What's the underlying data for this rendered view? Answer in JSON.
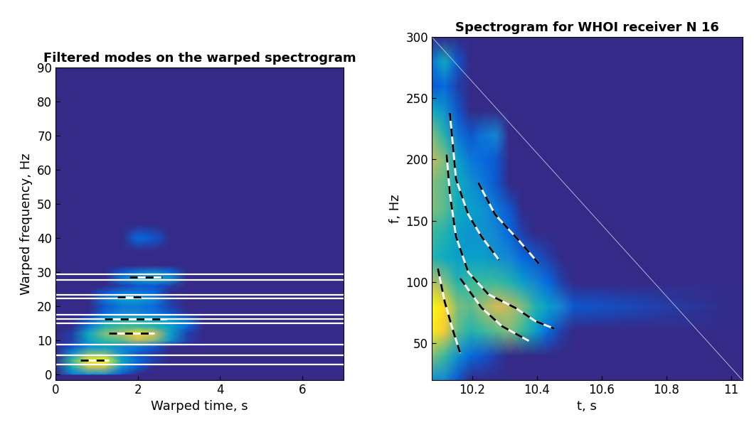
{
  "chart_data": [
    {
      "type": "heatmap",
      "title": "Filtered modes on the warped spectrogram",
      "xlabel": "Warped time, s",
      "ylabel": "Warped frequency, Hz",
      "xlim": [
        0,
        7
      ],
      "ylim": [
        -1.7,
        90
      ],
      "xticks": [
        0,
        2,
        4,
        6
      ],
      "yticks": [
        0,
        10,
        20,
        30,
        40,
        50,
        60,
        70,
        80,
        90
      ],
      "clim": [
        0,
        1
      ],
      "x": [
        0,
        0.4,
        0.8,
        1.2,
        1.6,
        2.0,
        2.4,
        2.8,
        3.2,
        3.6,
        6.9
      ],
      "y": [
        0,
        2,
        4,
        6,
        8,
        10,
        12,
        14,
        16,
        18,
        20,
        22,
        24,
        26,
        28,
        30,
        32,
        36,
        40,
        44,
        90
      ],
      "cells": [
        [
          0,
          0.2,
          0.3,
          0.3,
          0.1,
          0,
          0,
          0,
          0,
          0,
          0
        ],
        [
          0,
          0.4,
          0.7,
          0.7,
          0.3,
          0.1,
          0,
          0,
          0,
          0,
          0
        ],
        [
          0,
          0.5,
          0.95,
          1.0,
          0.4,
          0.15,
          0.05,
          0,
          0,
          0,
          0
        ],
        [
          0,
          0.3,
          0.6,
          0.6,
          0.3,
          0.1,
          0.05,
          0,
          0,
          0,
          0
        ],
        [
          0,
          0.1,
          0.3,
          0.35,
          0.25,
          0.2,
          0.1,
          0,
          0,
          0,
          0
        ],
        [
          0,
          0.05,
          0.35,
          0.5,
          0.55,
          0.7,
          0.6,
          0.3,
          0.05,
          0,
          0
        ],
        [
          0,
          0.05,
          0.4,
          0.6,
          0.7,
          0.9,
          0.75,
          0.35,
          0.05,
          0,
          0
        ],
        [
          0,
          0,
          0.2,
          0.45,
          0.5,
          0.5,
          0.45,
          0.35,
          0.15,
          0,
          0
        ],
        [
          0,
          0,
          0.1,
          0.35,
          0.45,
          0.45,
          0.4,
          0.35,
          0.2,
          0,
          0
        ],
        [
          0,
          0,
          0,
          0.15,
          0.25,
          0.25,
          0.2,
          0.1,
          0,
          0,
          0
        ],
        [
          0,
          0,
          0,
          0.1,
          0.2,
          0.2,
          0.15,
          0.05,
          0,
          0,
          0
        ],
        [
          0,
          0,
          0,
          0.2,
          0.35,
          0.35,
          0.25,
          0.05,
          0,
          0,
          0
        ],
        [
          0,
          0,
          0,
          0.1,
          0.2,
          0.2,
          0.15,
          0,
          0,
          0,
          0
        ],
        [
          0,
          0,
          0,
          0,
          0.05,
          0.1,
          0.1,
          0.05,
          0,
          0,
          0
        ],
        [
          0,
          0,
          0,
          0,
          0.2,
          0.35,
          0.4,
          0.3,
          0,
          0,
          0
        ],
        [
          0,
          0,
          0,
          0,
          0.1,
          0.2,
          0.25,
          0.15,
          0,
          0,
          0
        ],
        [
          0,
          0,
          0,
          0,
          0,
          0,
          0,
          0,
          0,
          0,
          0
        ],
        [
          0,
          0,
          0,
          0,
          0,
          0,
          0,
          0,
          0,
          0,
          0
        ],
        [
          0,
          0,
          0,
          0,
          0,
          0.15,
          0.1,
          0,
          0,
          0,
          0
        ],
        [
          0,
          0,
          0,
          0,
          0,
          0,
          0,
          0,
          0,
          0,
          0
        ],
        [
          0,
          0,
          0,
          0,
          0,
          0,
          0,
          0,
          0,
          0,
          0
        ]
      ],
      "hlines": [
        2.8,
        5.5,
        8.8,
        15,
        16.2,
        17.5,
        22.2,
        23.3,
        27.6,
        29.3
      ],
      "curves": [
        {
          "x": [
            0.6,
            1.3
          ],
          "y": [
            4.2,
            4.2
          ]
        },
        {
          "x": [
            1.3,
            2.4
          ],
          "y": [
            12,
            12
          ]
        },
        {
          "x": [
            1.2,
            2.7
          ],
          "y": [
            16.3,
            16.3
          ]
        },
        {
          "x": [
            1.5,
            2.1
          ],
          "y": [
            22.7,
            22.7
          ]
        },
        {
          "x": [
            1.8,
            2.6
          ],
          "y": [
            28.5,
            28.5
          ]
        }
      ]
    },
    {
      "type": "heatmap",
      "title": "Spectrogram for WHOI receiver N 16",
      "xlabel": "t, s",
      "ylabel": "f, Hz",
      "xlim": [
        10.075,
        11.035
      ],
      "ylim": [
        20,
        300
      ],
      "xticks": [
        10.2,
        10.4,
        10.6,
        10.8,
        11
      ],
      "yticks": [
        50,
        100,
        150,
        200,
        250,
        300
      ],
      "clim": [
        0,
        1
      ],
      "x": [
        10.075,
        10.115,
        10.155,
        10.195,
        10.235,
        10.275,
        10.315,
        10.355,
        10.395,
        10.435,
        10.475,
        10.515,
        11.035
      ],
      "y": [
        20,
        40,
        60,
        80,
        100,
        120,
        140,
        160,
        180,
        200,
        220,
        240,
        260,
        280,
        300
      ],
      "cells": [
        [
          0.3,
          0.25,
          0.1,
          0,
          0,
          0,
          0,
          0,
          0,
          0,
          0,
          0,
          0
        ],
        [
          0.6,
          0.5,
          0.3,
          0.15,
          0.1,
          0.05,
          0,
          0,
          0,
          0,
          0,
          0,
          0
        ],
        [
          0.95,
          0.85,
          0.55,
          0.45,
          0.5,
          0.55,
          0.6,
          0.5,
          0.35,
          0.15,
          0.05,
          0,
          0
        ],
        [
          1.0,
          0.9,
          0.6,
          0.55,
          0.65,
          0.75,
          0.7,
          0.6,
          0.45,
          0.35,
          0.25,
          0.1,
          0
        ],
        [
          0.7,
          0.6,
          0.45,
          0.5,
          0.5,
          0.5,
          0.45,
          0.35,
          0.25,
          0.15,
          0.05,
          0,
          0
        ],
        [
          0.45,
          0.4,
          0.35,
          0.35,
          0.35,
          0.3,
          0.25,
          0.15,
          0.1,
          0.05,
          0,
          0,
          0
        ],
        [
          0.5,
          0.45,
          0.35,
          0.3,
          0.3,
          0.25,
          0.15,
          0.05,
          0,
          0,
          0,
          0,
          0
        ],
        [
          0.6,
          0.55,
          0.4,
          0.35,
          0.3,
          0.2,
          0.1,
          0,
          0,
          0,
          0,
          0,
          0
        ],
        [
          0.6,
          0.55,
          0.4,
          0.3,
          0.2,
          0.1,
          0,
          0,
          0,
          0,
          0,
          0,
          0
        ],
        [
          0.7,
          0.6,
          0.35,
          0.2,
          0.15,
          0.1,
          0,
          0,
          0,
          0,
          0,
          0,
          0
        ],
        [
          0.6,
          0.45,
          0.2,
          0.1,
          0.2,
          0.25,
          0,
          0,
          0,
          0,
          0,
          0,
          0
        ],
        [
          0.4,
          0.3,
          0.1,
          0,
          0,
          0,
          0,
          0,
          0,
          0,
          0,
          0,
          0
        ],
        [
          0.1,
          0.15,
          0.05,
          0,
          0,
          0,
          0,
          0,
          0,
          0,
          0,
          0,
          0
        ],
        [
          0.2,
          0.4,
          0.1,
          0,
          0,
          0,
          0,
          0,
          0,
          0,
          0,
          0,
          0
        ],
        [
          0,
          0,
          0,
          0,
          0,
          0,
          0,
          0,
          0,
          0,
          0,
          0,
          0
        ]
      ],
      "diagonal": {
        "x": [
          10.075,
          11.035
        ],
        "y": [
          300,
          20
        ]
      },
      "curves": [
        {
          "x": [
            10.094,
            10.115,
            10.14,
            10.163
          ],
          "y": [
            111,
            84,
            61,
            42
          ]
        },
        {
          "x": [
            10.121,
            10.131,
            10.15,
            10.188,
            10.25,
            10.333,
            10.396,
            10.454
          ],
          "y": [
            204,
            172,
            137,
            108,
            90,
            79,
            68,
            62
          ]
        },
        {
          "x": [
            10.163,
            10.229,
            10.292,
            10.375
          ],
          "y": [
            103,
            79,
            64,
            52
          ]
        },
        {
          "x": [
            10.131,
            10.15,
            10.188,
            10.229,
            10.283
          ],
          "y": [
            238,
            184,
            155,
            137,
            118
          ]
        },
        {
          "x": [
            10.219,
            10.271,
            10.344,
            10.406
          ],
          "y": [
            181,
            155,
            134,
            115
          ]
        }
      ]
    }
  ]
}
